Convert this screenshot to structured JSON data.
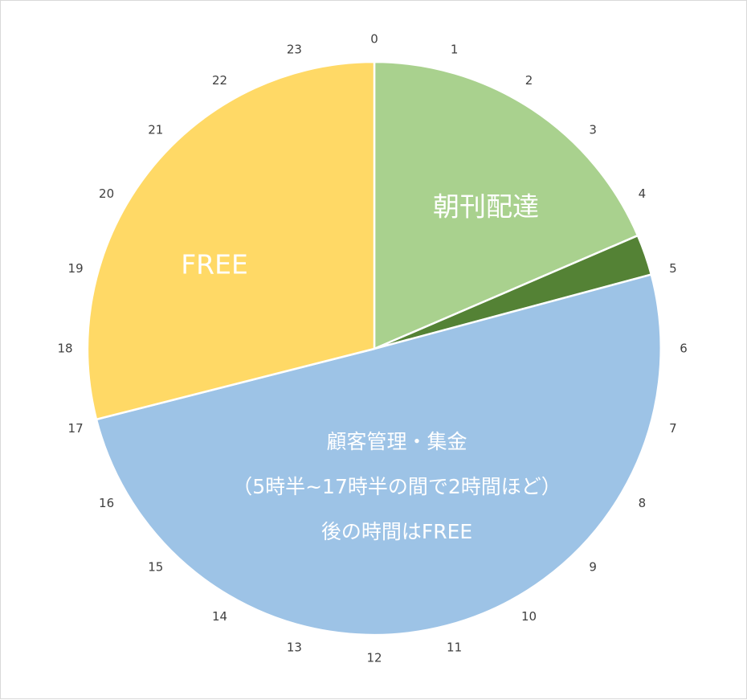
{
  "chart_data": {
    "type": "pie",
    "unit": "hours",
    "start_angle_hours": 0,
    "total_hours": 24,
    "slices": [
      {
        "name": "朝刊配達",
        "value": 4.45,
        "color": "#a9d18e",
        "label_lines": [
          "朝刊配達"
        ]
      },
      {
        "name": "",
        "value": 0.55,
        "color": "#548235",
        "label_lines": []
      },
      {
        "name": "顧客管理・集金",
        "value": 12.05,
        "color": "#9dc3e6",
        "label_lines": [
          "顧客管理・集金",
          "（5時半~17時半の間で2時間ほど）",
          "後の時間はFREE"
        ]
      },
      {
        "name": "FREE",
        "value": 6.95,
        "color": "#ffd966",
        "label_lines": [
          "FREE"
        ]
      }
    ],
    "hour_labels": [
      "0",
      "1",
      "2",
      "3",
      "4",
      "5",
      "6",
      "7",
      "8",
      "9",
      "10",
      "11",
      "12",
      "13",
      "14",
      "15",
      "16",
      "17",
      "18",
      "19",
      "20",
      "21",
      "22",
      "23"
    ],
    "legend": "none",
    "slice_border_color": "#ffffff"
  }
}
